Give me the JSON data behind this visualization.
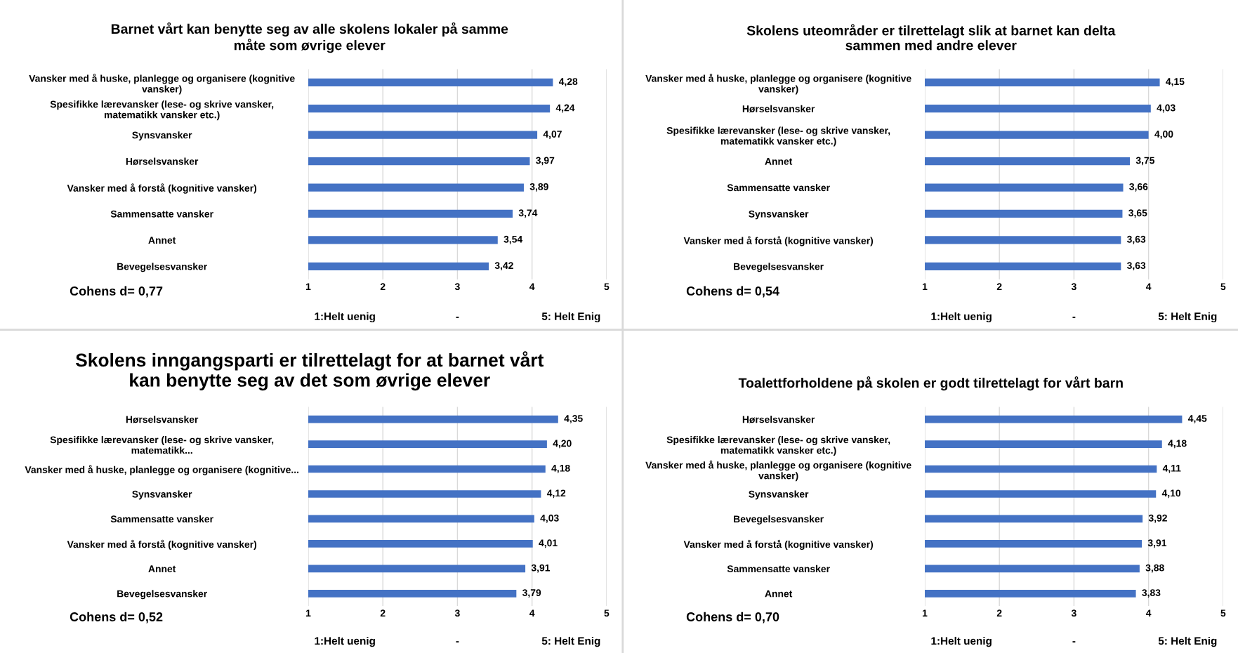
{
  "chart_data": [
    {
      "type": "bar",
      "orientation": "horizontal",
      "title": "Barnet vårt kan benytte seg av alle skolens lokaler på samme måte som øvrige elever",
      "categories": [
        "Vansker med å huske, planlegge og organisere (kognitive vansker)",
        "Spesifikke lærevansker (lese- og skrive vansker, matematikk vansker etc.)",
        "Synsvansker",
        "Hørselsvansker",
        "Vansker med å forstå (kognitive vansker)",
        "Sammensatte vansker",
        "Annet",
        "Bevegelsesvansker"
      ],
      "values": [
        4.28,
        4.24,
        4.07,
        3.97,
        3.89,
        3.74,
        3.54,
        3.42
      ],
      "value_labels": [
        "4,28",
        "4,24",
        "4,07",
        "3,97",
        "3,89",
        "3,74",
        "3,54",
        "3,42"
      ],
      "color": "#4472c4",
      "xlim": [
        1,
        5
      ],
      "xticks": [
        1,
        2,
        3,
        4,
        5
      ],
      "grid": "x",
      "annotations": [
        "Cohens d= 0,77",
        "1:Helt uenig",
        "-",
        "5: Helt Enig"
      ]
    },
    {
      "type": "bar",
      "orientation": "horizontal",
      "title": "Skolens uteområder er tilrettelagt slik at barnet kan delta sammen med andre elever",
      "categories": [
        "Vansker med å huske, planlegge og organisere (kognitive vansker)",
        "Hørselsvansker",
        "Spesifikke lærevansker (lese- og skrive vansker, matematikk vansker etc.)",
        "Annet",
        "Sammensatte vansker",
        "Synsvansker",
        "Vansker med å forstå (kognitive vansker)",
        "Bevegelsesvansker"
      ],
      "values": [
        4.15,
        4.03,
        4.0,
        3.75,
        3.66,
        3.65,
        3.63,
        3.63
      ],
      "value_labels": [
        "4,15",
        "4,03",
        "4,00",
        "3,75",
        "3,66",
        "3,65",
        "3,63",
        "3,63"
      ],
      "color": "#4472c4",
      "xlim": [
        1,
        5
      ],
      "xticks": [
        1,
        2,
        3,
        4,
        5
      ],
      "grid": "x",
      "annotations": [
        "Cohens d= 0,54",
        "1:Helt uenig",
        "-",
        "5: Helt Enig"
      ]
    },
    {
      "type": "bar",
      "orientation": "horizontal",
      "title": "Skolens inngangsparti er tilrettelagt for at barnet vårt kan benytte seg av det som øvrige elever",
      "categories": [
        "Hørselsvansker",
        "Spesifikke lærevansker (lese- og skrive vansker, matematikk...",
        "Vansker med å huske, planlegge og organisere (kognitive...",
        "Synsvansker",
        "Sammensatte vansker",
        "Vansker med å forstå (kognitive vansker)",
        "Annet",
        "Bevegelsesvansker"
      ],
      "values": [
        4.35,
        4.2,
        4.18,
        4.12,
        4.03,
        4.01,
        3.91,
        3.79
      ],
      "value_labels": [
        "4,35",
        "4,20",
        "4,18",
        "4,12",
        "4,03",
        "4,01",
        "3,91",
        "3,79"
      ],
      "color": "#4472c4",
      "xlim": [
        1,
        5
      ],
      "xticks": [
        1,
        2,
        3,
        4,
        5
      ],
      "grid": "x",
      "annotations": [
        "Cohens d= 0,52",
        "1:Helt uenig",
        "-",
        "5: Helt Enig"
      ]
    },
    {
      "type": "bar",
      "orientation": "horizontal",
      "title": "Toalettforholdene på skolen er godt tilrettelagt for vårt barn",
      "categories": [
        "Hørselsvansker",
        "Spesifikke lærevansker (lese- og skrive vansker, matematikk vansker etc.)",
        "Vansker med å huske, planlegge og organisere (kognitive vansker)",
        "Synsvansker",
        "Bevegelsesvansker",
        "Vansker med å forstå (kognitive vansker)",
        "Sammensatte vansker",
        "Annet"
      ],
      "values": [
        4.45,
        4.18,
        4.11,
        4.1,
        3.92,
        3.91,
        3.88,
        3.83
      ],
      "value_labels": [
        "4,45",
        "4,18",
        "4,11",
        "4,10",
        "3,92",
        "3,91",
        "3,88",
        "3,83"
      ],
      "color": "#4472c4",
      "xlim": [
        1,
        5
      ],
      "xticks": [
        1,
        2,
        3,
        4,
        5
      ],
      "grid": "x",
      "annotations": [
        "Cohens d= 0,70",
        "1:Helt uenig",
        "-",
        "5: Helt Enig"
      ]
    }
  ]
}
